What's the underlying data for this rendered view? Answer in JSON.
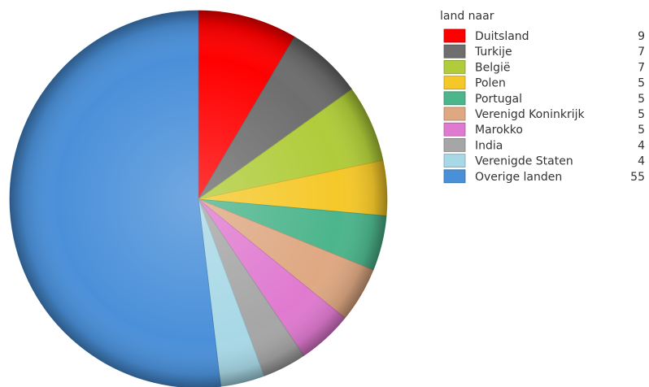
{
  "chart_data": {
    "type": "pie",
    "legend_title": "land naar",
    "legend_position": "top-right",
    "slices": [
      {
        "label": "Duitsland",
        "value": 9,
        "color": "#ff0000"
      },
      {
        "label": "Turkije",
        "value": 7,
        "color": "#6e6e6e"
      },
      {
        "label": "België",
        "value": 7,
        "color": "#b0cc3a"
      },
      {
        "label": "Polen",
        "value": 5,
        "color": "#f5c82a"
      },
      {
        "label": "Portugal",
        "value": 5,
        "color": "#4cb58c"
      },
      {
        "label": "Verenigd Koninkrijk",
        "value": 5,
        "color": "#dea882"
      },
      {
        "label": "Marokko",
        "value": 5,
        "color": "#e07ad0"
      },
      {
        "label": "India",
        "value": 4,
        "color": "#a6a6a6"
      },
      {
        "label": "Verenigde Staten",
        "value": 4,
        "color": "#a8d8e6"
      },
      {
        "label": "Overige landen",
        "value": 55,
        "color": "#4a90d9"
      }
    ]
  }
}
